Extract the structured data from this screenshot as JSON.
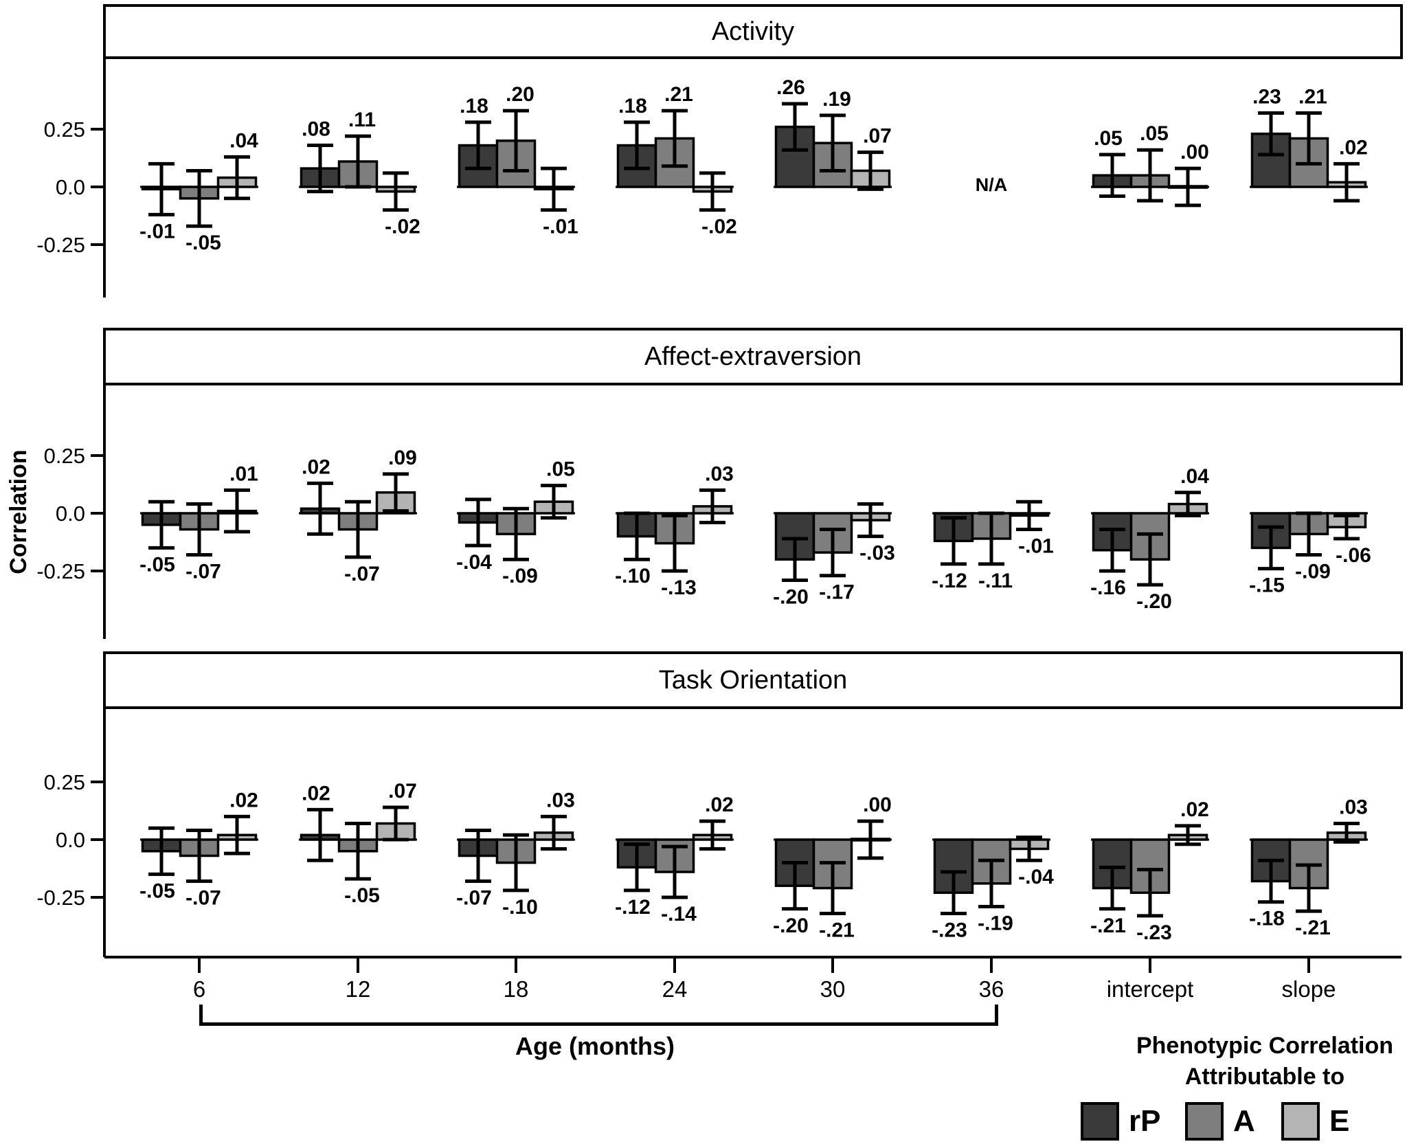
{
  "figure": {
    "ylabel": "Correlation",
    "xlabel": "Age (months)",
    "x_categories": [
      "6",
      "12",
      "18",
      "24",
      "30",
      "36",
      "intercept",
      "slope"
    ],
    "yticks": [
      "0.25",
      "0.0",
      "-0.25"
    ],
    "ytick_values": [
      0.25,
      0.0,
      -0.25
    ],
    "na_label": "N/A",
    "age_bracket": {
      "from": "6",
      "to": "36"
    },
    "legend_title_line1": "Phenotypic Correlation",
    "legend_title_line2": "Attributable to",
    "legend": [
      {
        "label": "rP",
        "color": "#3a3a3a"
      },
      {
        "label": "A",
        "color": "#7e7e7e"
      },
      {
        "label": "E",
        "color": "#b4b4b4"
      }
    ]
  },
  "chart_data": [
    {
      "type": "bar",
      "title": "Activity",
      "categories": [
        "6",
        "12",
        "18",
        "24",
        "30",
        "36",
        "intercept",
        "slope"
      ],
      "xlabel": "Age (months)",
      "ylabel": "Correlation",
      "ylim": [
        -0.45,
        0.55
      ],
      "ytick_values": [
        0.25,
        0.0,
        -0.25
      ],
      "na_at": "36",
      "series": [
        {
          "name": "rP",
          "color": "#3a3a3a",
          "values": [
            -0.01,
            0.08,
            0.18,
            0.18,
            0.26,
            null,
            0.05,
            0.23
          ],
          "errors": [
            0.11,
            0.1,
            0.1,
            0.1,
            0.1,
            null,
            0.09,
            0.09
          ]
        },
        {
          "name": "A",
          "color": "#7e7e7e",
          "values": [
            -0.05,
            0.11,
            0.2,
            0.21,
            0.19,
            null,
            0.05,
            0.21
          ],
          "errors": [
            0.12,
            0.11,
            0.13,
            0.12,
            0.12,
            null,
            0.11,
            0.11
          ]
        },
        {
          "name": "E",
          "color": "#b4b4b4",
          "values": [
            0.04,
            -0.02,
            -0.01,
            -0.02,
            0.07,
            null,
            0.0,
            0.02
          ],
          "errors": [
            0.09,
            0.08,
            0.09,
            0.08,
            0.08,
            null,
            0.08,
            0.08
          ]
        }
      ]
    },
    {
      "type": "bar",
      "title": "Affect-extraversion",
      "categories": [
        "6",
        "12",
        "18",
        "24",
        "30",
        "36",
        "intercept",
        "slope"
      ],
      "xlabel": "Age (months)",
      "ylabel": "Correlation",
      "ylim": [
        -0.55,
        0.45
      ],
      "ytick_values": [
        0.25,
        0.0,
        -0.25
      ],
      "na_at": null,
      "series": [
        {
          "name": "rP",
          "color": "#3a3a3a",
          "values": [
            -0.05,
            0.02,
            -0.04,
            -0.1,
            -0.2,
            -0.12,
            -0.16,
            -0.15
          ],
          "errors": [
            0.1,
            0.11,
            0.1,
            0.1,
            0.09,
            0.1,
            0.09,
            0.09
          ]
        },
        {
          "name": "A",
          "color": "#7e7e7e",
          "values": [
            -0.07,
            -0.07,
            -0.09,
            -0.13,
            -0.17,
            -0.11,
            -0.2,
            -0.09
          ],
          "errors": [
            0.11,
            0.12,
            0.11,
            0.12,
            0.1,
            0.11,
            0.11,
            0.09
          ]
        },
        {
          "name": "E",
          "color": "#b4b4b4",
          "values": [
            0.01,
            0.09,
            0.05,
            0.03,
            -0.03,
            -0.01,
            0.04,
            -0.06
          ],
          "errors": [
            0.09,
            0.08,
            0.07,
            0.07,
            0.07,
            0.06,
            0.05,
            0.05
          ]
        }
      ]
    },
    {
      "type": "bar",
      "title": "Task Orientation",
      "categories": [
        "6",
        "12",
        "18",
        "24",
        "30",
        "36",
        "intercept",
        "slope"
      ],
      "xlabel": "Age (months)",
      "ylabel": "Correlation",
      "ylim": [
        -0.55,
        0.45
      ],
      "ytick_values": [
        0.25,
        0.0,
        -0.25
      ],
      "na_at": null,
      "series": [
        {
          "name": "rP",
          "color": "#3a3a3a",
          "values": [
            -0.05,
            0.02,
            -0.07,
            -0.12,
            -0.2,
            -0.23,
            -0.21,
            -0.18
          ],
          "errors": [
            0.1,
            0.11,
            0.11,
            0.1,
            0.1,
            0.09,
            0.09,
            0.09
          ]
        },
        {
          "name": "A",
          "color": "#7e7e7e",
          "values": [
            -0.07,
            -0.05,
            -0.1,
            -0.14,
            -0.21,
            -0.19,
            -0.23,
            -0.21
          ],
          "errors": [
            0.11,
            0.12,
            0.12,
            0.11,
            0.11,
            0.1,
            0.1,
            0.1
          ]
        },
        {
          "name": "E",
          "color": "#b4b4b4",
          "values": [
            0.02,
            0.07,
            0.03,
            0.02,
            0.0,
            -0.04,
            0.02,
            0.03
          ],
          "errors": [
            0.08,
            0.07,
            0.07,
            0.06,
            0.08,
            0.05,
            0.04,
            0.04
          ]
        }
      ]
    }
  ]
}
